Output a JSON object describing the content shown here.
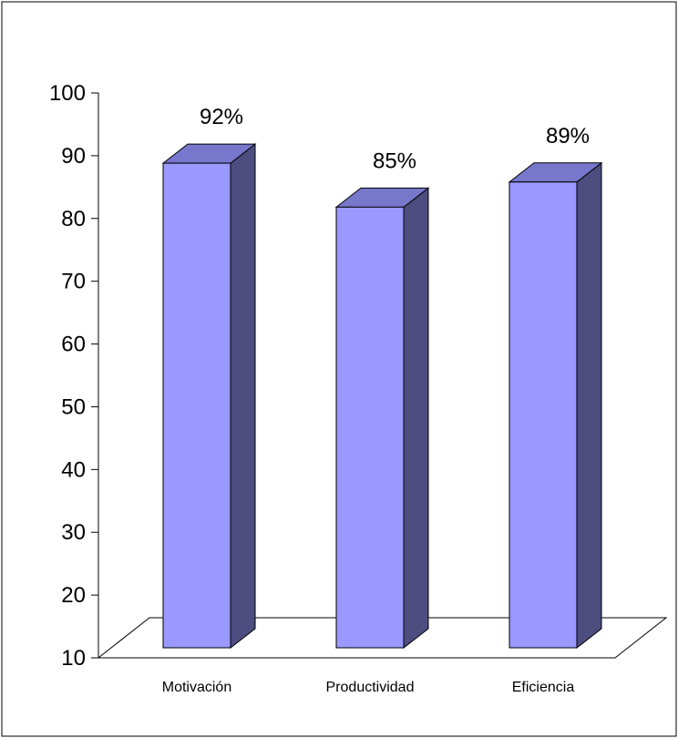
{
  "chart_data": {
    "type": "bar",
    "style": "3d-column",
    "categories": [
      "Motivación",
      "Productividad",
      "Eficiencia"
    ],
    "values": [
      92,
      85,
      89
    ],
    "data_labels": [
      "92%",
      "85%",
      "89%"
    ],
    "ylim": [
      10,
      100
    ],
    "yticks": [
      "10",
      "20",
      "30",
      "40",
      "50",
      "60",
      "70",
      "80",
      "90",
      "100"
    ],
    "grid": false,
    "legend": "none",
    "colors": {
      "bar_front": "#9999ff",
      "bar_top": "#7777cc",
      "bar_side": "#4d4d80",
      "outline": "#000000",
      "border": "#000000",
      "background": "#ffffff"
    }
  }
}
